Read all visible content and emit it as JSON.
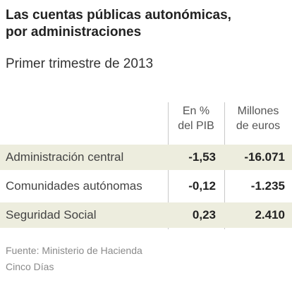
{
  "header": {
    "title_line1": "Las cuentas públicas autonómicas,",
    "title_line2": "por administraciones",
    "subtitle": "Primer trimestre de 2013"
  },
  "chart_data": {
    "type": "table",
    "columns": [
      "En % del PIB",
      "Millones de euros"
    ],
    "column_header_lines": [
      [
        "En %",
        "del PIB"
      ],
      [
        "Millones",
        "de euros"
      ]
    ],
    "rows": [
      {
        "label": "Administración central",
        "pct_pib": "-1,53",
        "millones_euros": "-16.071"
      },
      {
        "label": "Comunidades autónomas",
        "pct_pib": "-0,12",
        "millones_euros": "-1.235"
      },
      {
        "label": "Seguridad Social",
        "pct_pib": "0,23",
        "millones_euros": "2.410"
      }
    ],
    "row_shading": "alternating"
  },
  "footer": {
    "source": "Fuente: Ministerio de Hacienda",
    "publisher": "Cinco Días"
  },
  "colors": {
    "row_shade": "#ededde",
    "divider": "#c8c8c8",
    "footer_text": "#8a8a8a"
  }
}
